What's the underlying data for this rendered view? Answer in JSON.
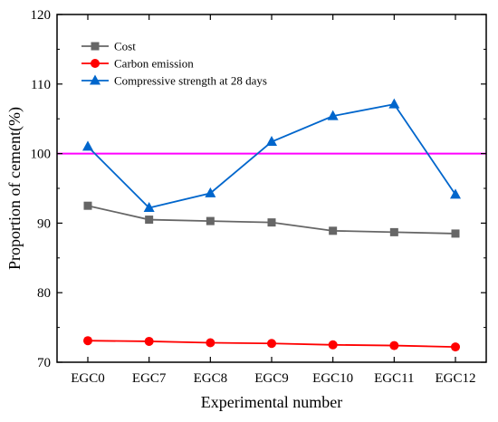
{
  "chart_data": {
    "type": "line",
    "xlabel": "Experimental number",
    "ylabel": "Proportion of cement(%)",
    "categories": [
      "EGC0",
      "EGC7",
      "EGC8",
      "EGC9",
      "EGC10",
      "EGC11",
      "EGC12"
    ],
    "ylim": [
      70,
      120
    ],
    "yticks": [
      70,
      80,
      90,
      100,
      110,
      120
    ],
    "grid": false,
    "legend_position": "top-left",
    "reference_line": {
      "y": 100,
      "color": "#ff00ff"
    },
    "series": [
      {
        "name": "Cost",
        "color": "#666666",
        "marker": "square",
        "values": [
          92.5,
          90.5,
          90.3,
          90.1,
          88.9,
          88.7,
          88.5
        ]
      },
      {
        "name": "Carbon emission",
        "color": "#ff0000",
        "marker": "circle",
        "values": [
          73.1,
          73.0,
          72.8,
          72.7,
          72.5,
          72.4,
          72.2
        ]
      },
      {
        "name": "Compressive strength at 28 days",
        "color": "#0066cc",
        "marker": "triangle",
        "values": [
          101.0,
          92.2,
          94.3,
          101.7,
          105.4,
          107.1,
          94.1
        ]
      }
    ]
  }
}
